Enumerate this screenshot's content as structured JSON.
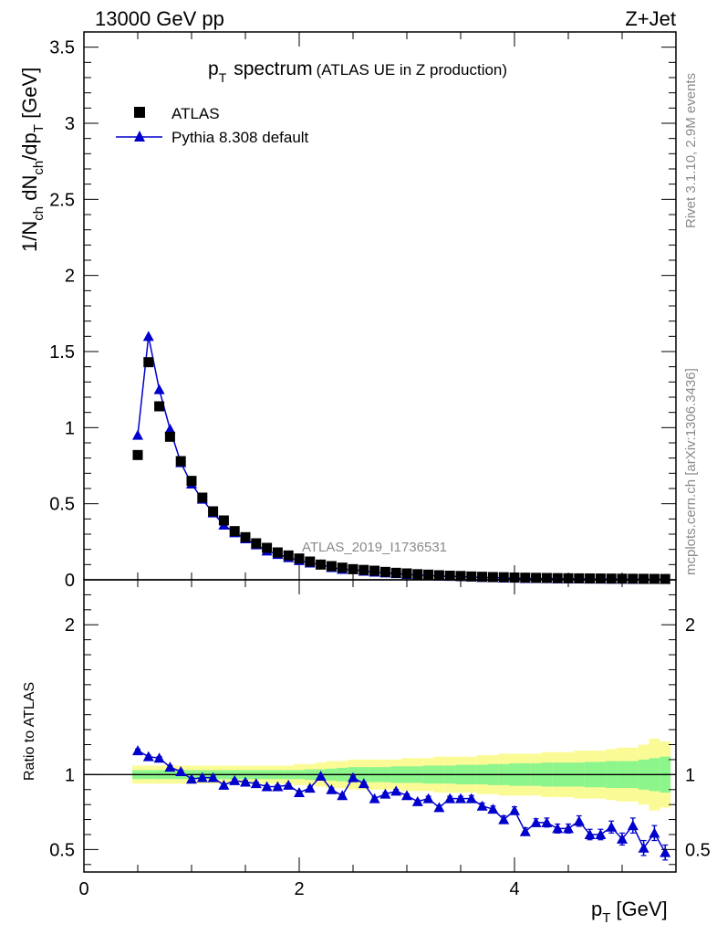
{
  "header": {
    "energy_label": "13000 GeV pp",
    "process_label": "Z+Jet"
  },
  "side_labels": {
    "rivet": "Rivet 3.1.10,  2.9M events",
    "mcplots": "mcplots.cern.ch [arXiv:1306.3436]"
  },
  "chart_data": [
    {
      "type": "scatter",
      "panel": "main",
      "title_main": "p",
      "title_sub": "T",
      "title_word": "spectrum",
      "title_note": "(ATLAS UE in Z production)",
      "ylabel": "1/N_ch dN_ch/dp_T [GeV]",
      "analysis_tag": "ATLAS_2019_I1736531",
      "ylim": [
        0,
        3.6
      ],
      "xlim": [
        0,
        5.5
      ],
      "yticks": [
        "0",
        "0.5",
        "1",
        "1.5",
        "2",
        "2.5",
        "3",
        "3.5"
      ],
      "legend": {
        "position": "top-left",
        "entries": [
          "ATLAS",
          "Pythia 8.308 default"
        ]
      },
      "x": [
        0.5,
        0.6,
        0.7,
        0.8,
        0.9,
        1.0,
        1.1,
        1.2,
        1.3,
        1.4,
        1.5,
        1.6,
        1.7,
        1.8,
        1.9,
        2.0,
        2.1,
        2.2,
        2.3,
        2.4,
        2.5,
        2.6,
        2.7,
        2.8,
        2.9,
        3.0,
        3.1,
        3.2,
        3.3,
        3.4,
        3.5,
        3.6,
        3.7,
        3.8,
        3.9,
        4.0,
        4.1,
        4.2,
        4.3,
        4.4,
        4.5,
        4.6,
        4.7,
        4.8,
        4.9,
        5.0,
        5.1,
        5.2,
        5.3,
        5.4
      ],
      "series": [
        {
          "name": "ATLAS",
          "color": "#000000",
          "marker": "square",
          "values": [
            0.82,
            1.43,
            1.14,
            0.94,
            0.78,
            0.65,
            0.54,
            0.45,
            0.39,
            0.32,
            0.28,
            0.24,
            0.21,
            0.18,
            0.16,
            0.14,
            0.12,
            0.1,
            0.09,
            0.08,
            0.07,
            0.065,
            0.06,
            0.052,
            0.046,
            0.042,
            0.037,
            0.034,
            0.03,
            0.027,
            0.025,
            0.022,
            0.02,
            0.018,
            0.017,
            0.015,
            0.014,
            0.013,
            0.012,
            0.011,
            0.01,
            0.0095,
            0.009,
            0.0085,
            0.008,
            0.0075,
            0.007,
            0.0065,
            0.006,
            0.0055
          ]
        },
        {
          "name": "Pythia 8.308 default",
          "color": "#0000cc",
          "marker": "triangle",
          "values": [
            0.95,
            1.6,
            1.25,
            0.99,
            0.77,
            0.63,
            0.53,
            0.44,
            0.36,
            0.31,
            0.27,
            0.23,
            0.19,
            0.167,
            0.146,
            0.127,
            0.111,
            0.1,
            0.081,
            0.069,
            0.068,
            0.057,
            0.051,
            0.046,
            0.041,
            0.036,
            0.031,
            0.029,
            0.024,
            0.023,
            0.021,
            0.019,
            0.016,
            0.014,
            0.012,
            0.011,
            0.009,
            0.009,
            0.008,
            0.007,
            0.0065,
            0.0065,
            0.0055,
            0.005,
            0.0047,
            0.0043,
            0.0039,
            0.0033,
            0.0036,
            0.0027
          ]
        }
      ]
    },
    {
      "type": "line",
      "panel": "ratio",
      "ylabel": "Ratio to ATLAS",
      "xlabel_main": "p",
      "xlabel_sub": "T",
      "xlabel_unit": "[GeV]",
      "ylim": [
        0.35,
        2.3
      ],
      "xlim": [
        0,
        5.5
      ],
      "yticks": [
        "0.5",
        "1",
        "2"
      ],
      "xticks": [
        "0",
        "2",
        "4"
      ],
      "reference_line": 1,
      "band_colors": {
        "inner": "#8cf58c",
        "outer": "#fbfb96"
      },
      "x": [
        0.5,
        0.6,
        0.7,
        0.8,
        0.9,
        1.0,
        1.1,
        1.2,
        1.3,
        1.4,
        1.5,
        1.6,
        1.7,
        1.8,
        1.9,
        2.0,
        2.1,
        2.2,
        2.3,
        2.4,
        2.5,
        2.6,
        2.7,
        2.8,
        2.9,
        3.0,
        3.1,
        3.2,
        3.3,
        3.4,
        3.5,
        3.6,
        3.7,
        3.8,
        3.9,
        4.0,
        4.1,
        4.2,
        4.3,
        4.4,
        4.5,
        4.6,
        4.7,
        4.8,
        4.9,
        5.0,
        5.1,
        5.2,
        5.3,
        5.4
      ],
      "inner_band": [
        0.03,
        0.03,
        0.03,
        0.03,
        0.03,
        0.03,
        0.03,
        0.03,
        0.03,
        0.03,
        0.03,
        0.03,
        0.03,
        0.03,
        0.03,
        0.03,
        0.035,
        0.035,
        0.04,
        0.045,
        0.05,
        0.05,
        0.05,
        0.05,
        0.055,
        0.055,
        0.055,
        0.06,
        0.06,
        0.06,
        0.065,
        0.065,
        0.065,
        0.07,
        0.07,
        0.075,
        0.075,
        0.075,
        0.08,
        0.08,
        0.08,
        0.08,
        0.085,
        0.085,
        0.09,
        0.09,
        0.09,
        0.1,
        0.11,
        0.12
      ],
      "outer_band": [
        0.06,
        0.06,
        0.06,
        0.06,
        0.06,
        0.06,
        0.06,
        0.06,
        0.06,
        0.06,
        0.06,
        0.06,
        0.06,
        0.06,
        0.06,
        0.07,
        0.07,
        0.08,
        0.09,
        0.09,
        0.1,
        0.1,
        0.1,
        0.1,
        0.1,
        0.11,
        0.11,
        0.11,
        0.12,
        0.12,
        0.12,
        0.12,
        0.13,
        0.13,
        0.14,
        0.14,
        0.14,
        0.14,
        0.15,
        0.15,
        0.15,
        0.16,
        0.16,
        0.16,
        0.17,
        0.18,
        0.18,
        0.2,
        0.24,
        0.22
      ],
      "series": [
        {
          "name": "Pythia 8.308 default",
          "color": "#0000cc",
          "values": [
            1.16,
            1.12,
            1.11,
            1.05,
            1.02,
            0.97,
            0.98,
            0.98,
            0.93,
            0.96,
            0.95,
            0.94,
            0.92,
            0.92,
            0.93,
            0.88,
            0.91,
            0.99,
            0.9,
            0.86,
            0.98,
            0.94,
            0.84,
            0.87,
            0.89,
            0.86,
            0.82,
            0.84,
            0.78,
            0.84,
            0.84,
            0.84,
            0.79,
            0.77,
            0.7,
            0.76,
            0.62,
            0.68,
            0.68,
            0.64,
            0.64,
            0.69,
            0.6,
            0.6,
            0.65,
            0.57,
            0.66,
            0.51,
            0.61,
            0.48
          ],
          "errors": [
            0.01,
            0.01,
            0.01,
            0.01,
            0.01,
            0.01,
            0.01,
            0.01,
            0.01,
            0.01,
            0.01,
            0.01,
            0.01,
            0.01,
            0.01,
            0.01,
            0.01,
            0.01,
            0.01,
            0.01,
            0.01,
            0.01,
            0.01,
            0.01,
            0.01,
            0.01,
            0.01,
            0.015,
            0.015,
            0.015,
            0.015,
            0.02,
            0.02,
            0.02,
            0.025,
            0.025,
            0.025,
            0.025,
            0.03,
            0.03,
            0.03,
            0.035,
            0.035,
            0.035,
            0.04,
            0.04,
            0.05,
            0.05,
            0.05,
            0.05
          ]
        }
      ]
    }
  ]
}
